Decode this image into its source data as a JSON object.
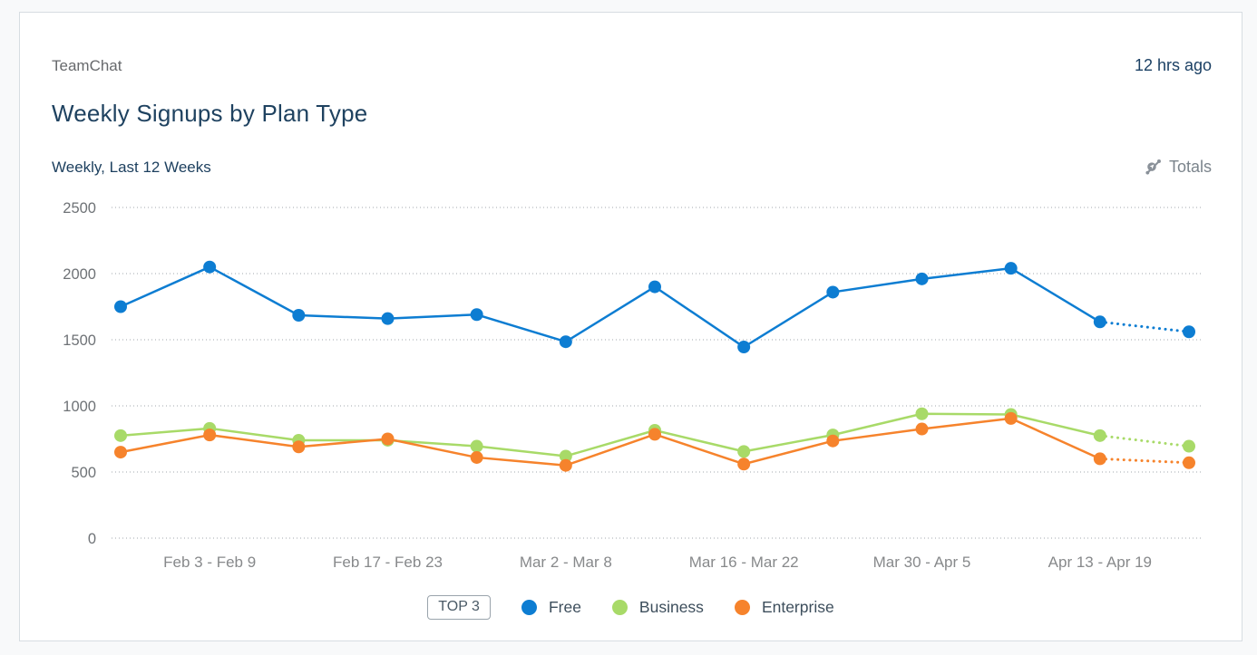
{
  "card": {
    "app_name": "TeamChat",
    "timestamp": "12 hrs ago",
    "title": "Weekly Signups by Plan Type",
    "subtitle": "Weekly, Last 12 Weeks",
    "totals_label": "Totals"
  },
  "legend": {
    "top_badge": "TOP 3"
  },
  "chart_data": {
    "type": "line",
    "title": "Weekly Signups by Plan Type",
    "subtitle": "Weekly, Last 12 Weeks",
    "ylim": [
      0,
      2500
    ],
    "yticks": [
      0,
      500,
      1000,
      1500,
      2000,
      2500
    ],
    "grid": "dotted-horizontal",
    "legend_position": "bottom",
    "x_tick_labels": [
      "Feb 3 - Feb 9",
      "Feb 17 - Feb 23",
      "Mar 2 - Mar 8",
      "Mar 16 - Mar 22",
      "Mar 30 - Apr 5",
      "Apr 13 - Apr 19"
    ],
    "x_tick_indices": [
      1,
      3,
      5,
      7,
      9,
      11
    ],
    "num_points": 13,
    "last_segment_dotted": true,
    "series": [
      {
        "name": "Free",
        "color": "#0d7dd2",
        "values": [
          1750,
          2050,
          1685,
          1660,
          1690,
          1485,
          1900,
          1445,
          1860,
          1960,
          2040,
          1635,
          1560
        ]
      },
      {
        "name": "Business",
        "color": "#a8da68",
        "values": [
          775,
          830,
          740,
          740,
          695,
          620,
          815,
          655,
          780,
          940,
          935,
          775,
          695
        ]
      },
      {
        "name": "Enterprise",
        "color": "#f6832c",
        "values": [
          650,
          780,
          690,
          750,
          610,
          550,
          785,
          560,
          735,
          825,
          905,
          600,
          570
        ]
      }
    ],
    "colors": {
      "free": "#0d7dd2",
      "business": "#a8da68",
      "enterprise": "#f6832c"
    }
  }
}
